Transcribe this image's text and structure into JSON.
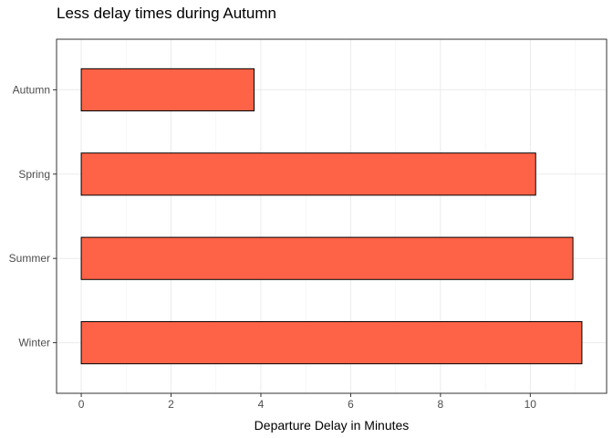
{
  "chart_data": {
    "type": "bar",
    "orientation": "horizontal",
    "title": "Less delay times during Autumn",
    "xlabel": "Departure Delay in Minutes",
    "ylabel": "",
    "categories": [
      "Autumn",
      "Spring",
      "Summer",
      "Winter"
    ],
    "values": [
      3.85,
      10.12,
      10.95,
      11.15
    ],
    "xlim": [
      -0.55,
      11.7
    ],
    "xticks": [
      0,
      2,
      4,
      6,
      8,
      10
    ],
    "grid": true,
    "legend": "none",
    "bar_color": "#FF6347",
    "bar_border_color": "#000000"
  }
}
